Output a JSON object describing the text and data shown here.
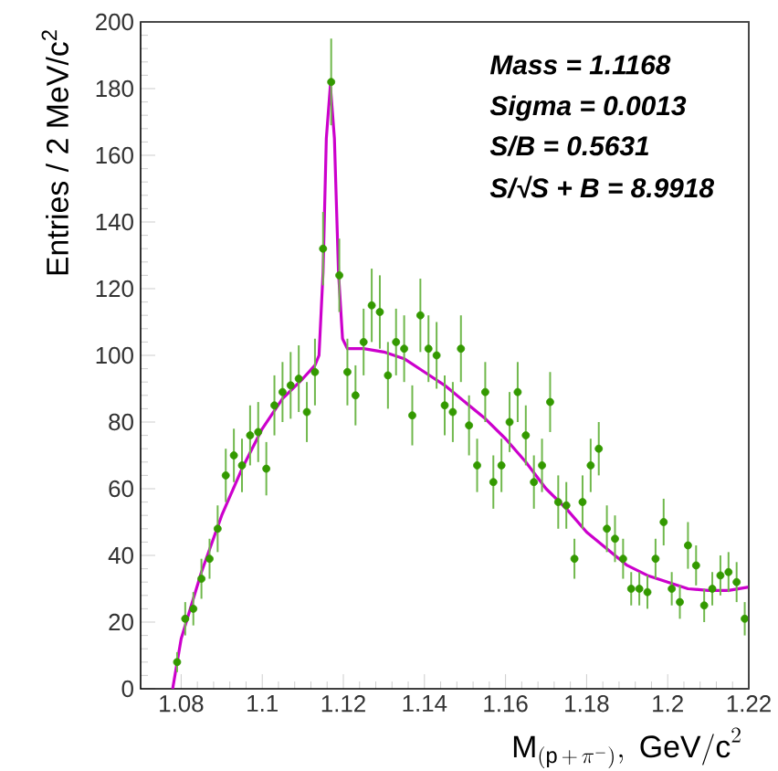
{
  "chart_data": {
    "type": "scatter",
    "xlabel": "\\mathrm{M}_{(\\mathrm{p}\\,+\\,\\pi^{-})}\\mathrm{,\\ GeV/c}^{2}",
    "ylabel": "Entries / 2 MeV/c$^{2}$",
    "annotations": [
      "Mass = 1.1168",
      "Sigma = 0.0013",
      "S/B = 0.5631",
      "S/√S + B = 8.9918"
    ],
    "xlim": [
      1.07,
      1.22
    ],
    "xticks": [
      1.08,
      1.1,
      1.12,
      1.14,
      1.16,
      1.18,
      1.2,
      1.22
    ],
    "ylim": [
      0,
      200
    ],
    "yticks": [
      0,
      20,
      40,
      60,
      80,
      100,
      120,
      140,
      160,
      180,
      200
    ],
    "grid": false,
    "series": [
      {
        "marker": "circle",
        "color": "#339900",
        "x": [
          1.079,
          1.081,
          1.083,
          1.085,
          1.087,
          1.089,
          1.091,
          1.093,
          1.095,
          1.097,
          1.099,
          1.101,
          1.103,
          1.105,
          1.107,
          1.109,
          1.111,
          1.113,
          1.115,
          1.117,
          1.119,
          1.121,
          1.123,
          1.125,
          1.127,
          1.129,
          1.131,
          1.133,
          1.135,
          1.137,
          1.139,
          1.141,
          1.143,
          1.145,
          1.147,
          1.149,
          1.151,
          1.153,
          1.155,
          1.157,
          1.159,
          1.161,
          1.163,
          1.165,
          1.167,
          1.169,
          1.171,
          1.173,
          1.175,
          1.177,
          1.179,
          1.181,
          1.183,
          1.185,
          1.187,
          1.189,
          1.191,
          1.193,
          1.195,
          1.197,
          1.199,
          1.201,
          1.203,
          1.205,
          1.207,
          1.209,
          1.211,
          1.213,
          1.215,
          1.217,
          1.219
        ],
        "values": [
          8,
          21,
          24,
          33,
          39,
          48,
          64,
          70,
          67,
          76,
          77,
          66,
          85,
          89,
          91,
          93,
          83,
          95,
          132,
          182,
          124,
          95,
          88,
          104,
          115,
          113,
          94,
          104,
          102,
          82,
          112,
          102,
          100,
          85,
          83,
          102,
          79,
          67,
          89,
          62,
          67,
          80,
          89,
          76,
          62,
          67,
          86,
          56,
          55,
          39,
          56,
          67,
          72,
          48,
          45,
          39,
          30,
          30,
          29,
          39,
          50,
          30,
          26,
          43,
          37,
          25,
          30,
          34,
          35,
          32,
          21
        ],
        "errors": [
          3,
          5,
          5,
          6,
          6,
          7,
          8,
          8,
          8,
          9,
          9,
          8,
          9,
          9,
          10,
          10,
          9,
          10,
          11,
          13,
          11,
          10,
          9,
          10,
          11,
          11,
          10,
          10,
          10,
          9,
          11,
          10,
          10,
          9,
          9,
          10,
          9,
          8,
          9,
          8,
          8,
          9,
          9,
          9,
          8,
          8,
          9,
          8,
          7,
          6,
          8,
          8,
          8,
          7,
          7,
          6,
          5,
          5,
          5,
          6,
          7,
          5,
          5,
          7,
          6,
          5,
          5,
          6,
          6,
          6,
          5
        ]
      },
      {
        "type": "line",
        "marker": "none",
        "line_style": "solid",
        "color": "#cc00cc",
        "x": [
          1.0779,
          1.08,
          1.085,
          1.09,
          1.095,
          1.1,
          1.105,
          1.11,
          1.113,
          1.114,
          1.115,
          1.1158,
          1.1168,
          1.1178,
          1.1188,
          1.1198,
          1.121,
          1.125,
          1.13,
          1.135,
          1.14,
          1.145,
          1.15,
          1.155,
          1.16,
          1.165,
          1.17,
          1.175,
          1.18,
          1.185,
          1.19,
          1.195,
          1.2,
          1.205,
          1.21,
          1.215,
          1.22
        ],
        "values": [
          0,
          15,
          35,
          52,
          66,
          78,
          87,
          93,
          97,
          100,
          125,
          165,
          181,
          165,
          125,
          105,
          102,
          102,
          101,
          99,
          95,
          91,
          86,
          81,
          75,
          68,
          60,
          54,
          47,
          42,
          37,
          34,
          32,
          30,
          29.5,
          29.5,
          30.5
        ]
      }
    ]
  }
}
